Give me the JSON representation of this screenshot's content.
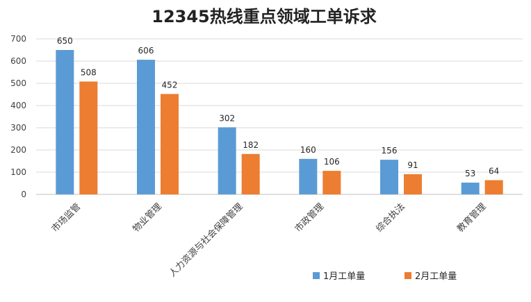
{
  "chart_data": {
    "type": "bar",
    "title": "12345热线重点领域工单诉求",
    "categories": [
      "市场监管",
      "物业管理",
      "人力资源与社会保障管理",
      "市政管理",
      "综合执法",
      "教育管理"
    ],
    "series": [
      {
        "name": "1月工单量",
        "values": [
          650,
          606,
          302,
          160,
          156,
          53
        ],
        "color": "#5b9bd5"
      },
      {
        "name": "2月工单量",
        "values": [
          508,
          452,
          182,
          106,
          91,
          64
        ],
        "color": "#ed7d31"
      }
    ],
    "ylim": [
      0,
      700
    ],
    "yticks": [
      0,
      100,
      200,
      300,
      400,
      500,
      600,
      700
    ],
    "grid": true,
    "legend": "bottom-right",
    "data_labels": true
  }
}
